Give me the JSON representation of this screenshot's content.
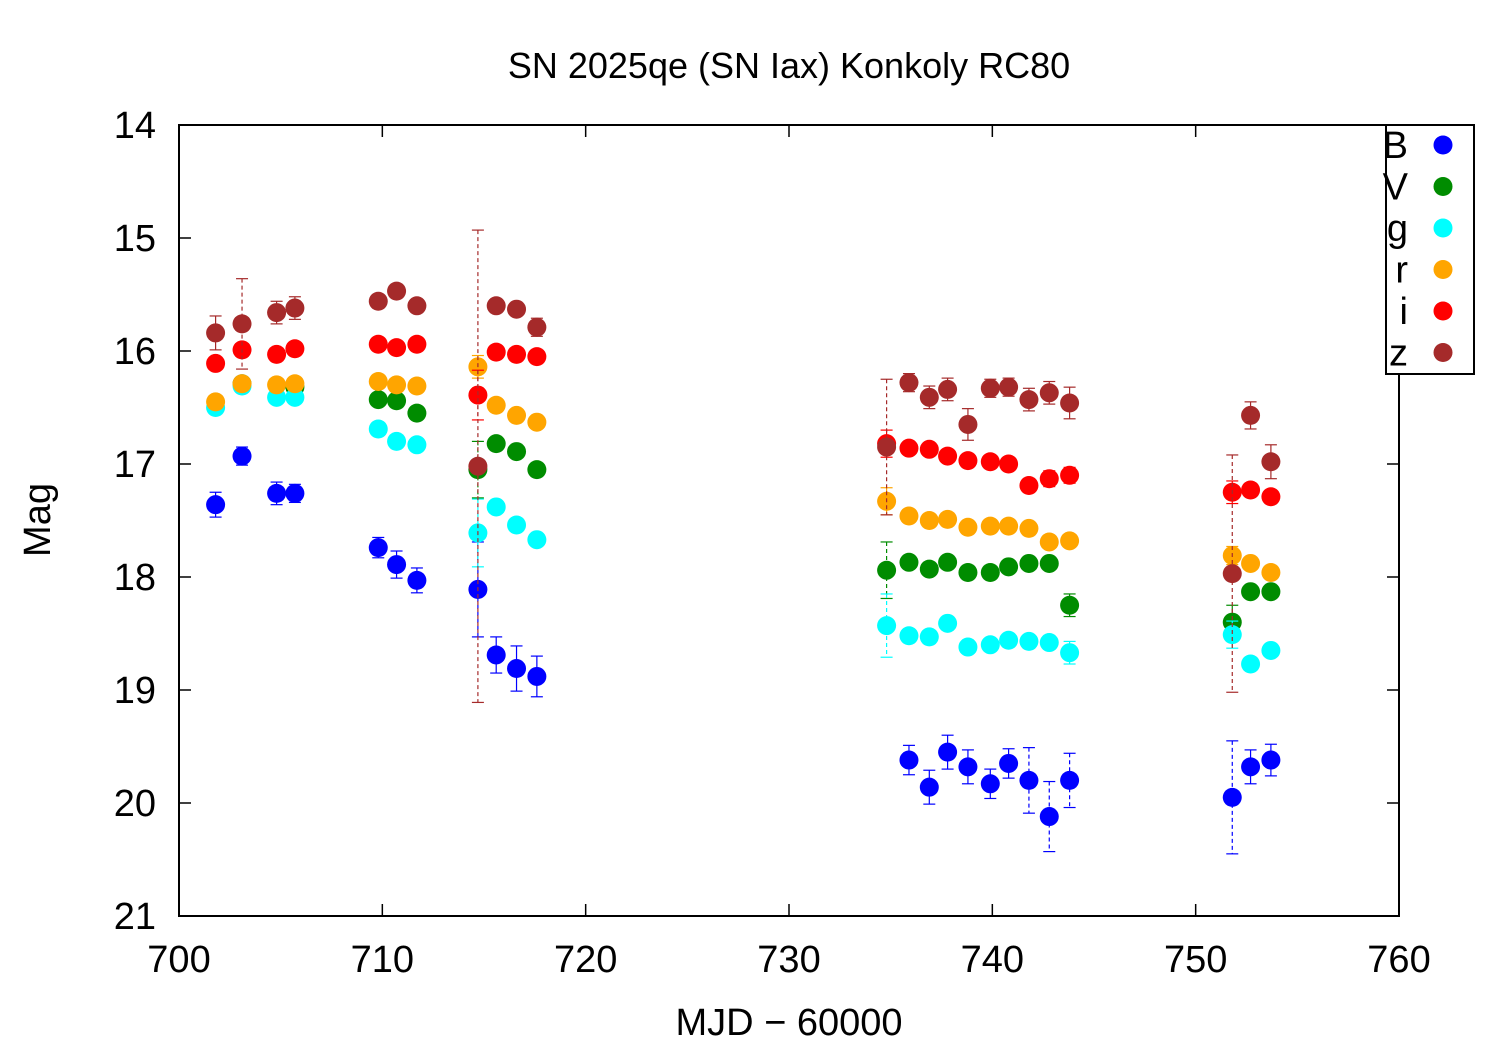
{
  "chart_data": {
    "type": "scatter",
    "title": "SN 2025qe (SN Iax) Konkoly RC80",
    "xlabel": "MJD − 60000",
    "ylabel": "Mag",
    "xlim": [
      700,
      760
    ],
    "ylim": [
      14,
      21
    ],
    "y_inverted": true,
    "x_ticks": [
      "700",
      "710",
      "720",
      "730",
      "740",
      "750",
      "760"
    ],
    "y_ticks": [
      "14",
      "15",
      "16",
      "17",
      "18",
      "19",
      "20",
      "21"
    ],
    "grid": false,
    "legend_position": "top-right",
    "marker": "filled-circle",
    "error_bars": true,
    "series": [
      {
        "name": "B",
        "color": "#0000ff",
        "points": [
          {
            "x": 701.8,
            "y": 17.36,
            "err": 0.11
          },
          {
            "x": 703.1,
            "y": 16.93,
            "err": 0.08
          },
          {
            "x": 704.8,
            "y": 17.26,
            "err": 0.1
          },
          {
            "x": 705.7,
            "y": 17.26,
            "err": 0.08
          },
          {
            "x": 709.8,
            "y": 17.74,
            "err": 0.09
          },
          {
            "x": 710.7,
            "y": 17.89,
            "err": 0.12
          },
          {
            "x": 711.7,
            "y": 18.03,
            "err": 0.11
          },
          {
            "x": 714.7,
            "y": 18.11,
            "err": 0.42
          },
          {
            "x": 715.6,
            "y": 18.69,
            "err": 0.16
          },
          {
            "x": 716.6,
            "y": 18.81,
            "err": 0.2
          },
          {
            "x": 717.6,
            "y": 18.88,
            "err": 0.18
          },
          {
            "x": 735.9,
            "y": 19.62,
            "err": 0.13
          },
          {
            "x": 736.9,
            "y": 19.86,
            "err": 0.15
          },
          {
            "x": 737.8,
            "y": 19.55,
            "err": 0.15
          },
          {
            "x": 738.8,
            "y": 19.68,
            "err": 0.15
          },
          {
            "x": 739.9,
            "y": 19.83,
            "err": 0.13
          },
          {
            "x": 740.8,
            "y": 19.65,
            "err": 0.13
          },
          {
            "x": 741.8,
            "y": 19.8,
            "err": 0.29
          },
          {
            "x": 742.8,
            "y": 20.12,
            "err": 0.31
          },
          {
            "x": 743.8,
            "y": 19.8,
            "err": 0.24
          },
          {
            "x": 751.8,
            "y": 19.95,
            "err": 0.5
          },
          {
            "x": 752.7,
            "y": 19.68,
            "err": 0.15
          },
          {
            "x": 753.7,
            "y": 19.62,
            "err": 0.14
          }
        ]
      },
      {
        "name": "V",
        "color": "#008c00",
        "points": [
          {
            "x": 703.1,
            "y": 16.29,
            "err": 0.04
          },
          {
            "x": 705.7,
            "y": 16.32,
            "err": 0.04
          },
          {
            "x": 709.8,
            "y": 16.43,
            "err": 0.04
          },
          {
            "x": 710.7,
            "y": 16.44,
            "err": 0.05
          },
          {
            "x": 711.7,
            "y": 16.55,
            "err": 0.04
          },
          {
            "x": 714.7,
            "y": 17.05,
            "err": 0.25
          },
          {
            "x": 715.6,
            "y": 16.82,
            "err": 0.05
          },
          {
            "x": 716.6,
            "y": 16.89,
            "err": 0.05
          },
          {
            "x": 717.6,
            "y": 17.05,
            "err": 0.05
          },
          {
            "x": 734.8,
            "y": 17.94,
            "err": 0.25
          },
          {
            "x": 735.9,
            "y": 17.87,
            "err": 0.05
          },
          {
            "x": 736.9,
            "y": 17.93,
            "err": 0.06
          },
          {
            "x": 737.8,
            "y": 17.87,
            "err": 0.05
          },
          {
            "x": 738.8,
            "y": 17.96,
            "err": 0.05
          },
          {
            "x": 739.9,
            "y": 17.96,
            "err": 0.05
          },
          {
            "x": 740.8,
            "y": 17.91,
            "err": 0.05
          },
          {
            "x": 741.8,
            "y": 17.88,
            "err": 0.05
          },
          {
            "x": 742.8,
            "y": 17.88,
            "err": 0.05
          },
          {
            "x": 743.8,
            "y": 18.25,
            "err": 0.1
          },
          {
            "x": 751.8,
            "y": 18.4,
            "err": 0.15
          },
          {
            "x": 752.7,
            "y": 18.13,
            "err": 0.05
          },
          {
            "x": 753.7,
            "y": 18.13,
            "err": 0.05
          }
        ]
      },
      {
        "name": "g",
        "color": "#00ffff",
        "points": [
          {
            "x": 701.8,
            "y": 16.5,
            "err": 0.04
          },
          {
            "x": 703.1,
            "y": 16.31,
            "err": 0.04
          },
          {
            "x": 704.8,
            "y": 16.41,
            "err": 0.04
          },
          {
            "x": 705.7,
            "y": 16.41,
            "err": 0.04
          },
          {
            "x": 709.8,
            "y": 16.69,
            "err": 0.04
          },
          {
            "x": 710.7,
            "y": 16.8,
            "err": 0.04
          },
          {
            "x": 711.7,
            "y": 16.83,
            "err": 0.04
          },
          {
            "x": 714.7,
            "y": 17.61,
            "err": 0.3
          },
          {
            "x": 715.6,
            "y": 17.38,
            "err": 0.05
          },
          {
            "x": 716.6,
            "y": 17.54,
            "err": 0.05
          },
          {
            "x": 717.6,
            "y": 17.67,
            "err": 0.05
          },
          {
            "x": 734.8,
            "y": 18.43,
            "err": 0.28
          },
          {
            "x": 735.9,
            "y": 18.52,
            "err": 0.06
          },
          {
            "x": 736.9,
            "y": 18.53,
            "err": 0.06
          },
          {
            "x": 737.8,
            "y": 18.41,
            "err": 0.06
          },
          {
            "x": 738.8,
            "y": 18.62,
            "err": 0.06
          },
          {
            "x": 739.9,
            "y": 18.6,
            "err": 0.05
          },
          {
            "x": 740.8,
            "y": 18.56,
            "err": 0.06
          },
          {
            "x": 741.8,
            "y": 18.57,
            "err": 0.06
          },
          {
            "x": 742.8,
            "y": 18.58,
            "err": 0.06
          },
          {
            "x": 743.8,
            "y": 18.67,
            "err": 0.1
          },
          {
            "x": 751.8,
            "y": 18.51,
            "err": 0.12
          },
          {
            "x": 752.7,
            "y": 18.77,
            "err": 0.05
          },
          {
            "x": 753.7,
            "y": 18.65,
            "err": 0.05
          }
        ]
      },
      {
        "name": "r",
        "color": "#ffa500",
        "points": [
          {
            "x": 701.8,
            "y": 16.45,
            "err": 0.04
          },
          {
            "x": 703.1,
            "y": 16.29,
            "err": 0.04
          },
          {
            "x": 704.8,
            "y": 16.3,
            "err": 0.04
          },
          {
            "x": 705.7,
            "y": 16.29,
            "err": 0.04
          },
          {
            "x": 709.8,
            "y": 16.27,
            "err": 0.04
          },
          {
            "x": 710.7,
            "y": 16.3,
            "err": 0.04
          },
          {
            "x": 711.7,
            "y": 16.31,
            "err": 0.04
          },
          {
            "x": 714.7,
            "y": 16.14,
            "err": 0.1
          },
          {
            "x": 715.6,
            "y": 16.48,
            "err": 0.04
          },
          {
            "x": 716.6,
            "y": 16.57,
            "err": 0.04
          },
          {
            "x": 717.6,
            "y": 16.63,
            "err": 0.04
          },
          {
            "x": 734.8,
            "y": 17.33,
            "err": 0.12
          },
          {
            "x": 735.9,
            "y": 17.46,
            "err": 0.04
          },
          {
            "x": 736.9,
            "y": 17.5,
            "err": 0.04
          },
          {
            "x": 737.8,
            "y": 17.49,
            "err": 0.04
          },
          {
            "x": 738.8,
            "y": 17.56,
            "err": 0.04
          },
          {
            "x": 739.9,
            "y": 17.55,
            "err": 0.04
          },
          {
            "x": 740.8,
            "y": 17.55,
            "err": 0.04
          },
          {
            "x": 741.8,
            "y": 17.57,
            "err": 0.04
          },
          {
            "x": 742.8,
            "y": 17.69,
            "err": 0.04
          },
          {
            "x": 743.8,
            "y": 17.68,
            "err": 0.05
          },
          {
            "x": 751.8,
            "y": 17.81,
            "err": 0.08
          },
          {
            "x": 752.7,
            "y": 17.88,
            "err": 0.04
          },
          {
            "x": 753.7,
            "y": 17.96,
            "err": 0.04
          }
        ]
      },
      {
        "name": "i",
        "color": "#ff0000",
        "points": [
          {
            "x": 701.8,
            "y": 16.11,
            "err": 0.04
          },
          {
            "x": 703.1,
            "y": 15.99,
            "err": 0.04
          },
          {
            "x": 704.8,
            "y": 16.03,
            "err": 0.04
          },
          {
            "x": 705.7,
            "y": 15.98,
            "err": 0.04
          },
          {
            "x": 709.8,
            "y": 15.94,
            "err": 0.04
          },
          {
            "x": 710.7,
            "y": 15.97,
            "err": 0.04
          },
          {
            "x": 711.7,
            "y": 15.94,
            "err": 0.04
          },
          {
            "x": 714.7,
            "y": 16.39,
            "err": 0.22
          },
          {
            "x": 715.6,
            "y": 16.01,
            "err": 0.04
          },
          {
            "x": 716.6,
            "y": 16.03,
            "err": 0.04
          },
          {
            "x": 717.6,
            "y": 16.05,
            "err": 0.04
          },
          {
            "x": 734.8,
            "y": 16.82,
            "err": 0.12
          },
          {
            "x": 735.9,
            "y": 16.86,
            "err": 0.04
          },
          {
            "x": 736.9,
            "y": 16.87,
            "err": 0.04
          },
          {
            "x": 737.8,
            "y": 16.93,
            "err": 0.04
          },
          {
            "x": 738.8,
            "y": 16.97,
            "err": 0.05
          },
          {
            "x": 739.9,
            "y": 16.98,
            "err": 0.05
          },
          {
            "x": 740.8,
            "y": 17.0,
            "err": 0.05
          },
          {
            "x": 741.8,
            "y": 17.19,
            "err": 0.06
          },
          {
            "x": 742.8,
            "y": 17.13,
            "err": 0.07
          },
          {
            "x": 743.8,
            "y": 17.1,
            "err": 0.07
          },
          {
            "x": 751.8,
            "y": 17.25,
            "err": 0.1
          },
          {
            "x": 752.7,
            "y": 17.23,
            "err": 0.06
          },
          {
            "x": 753.7,
            "y": 17.29,
            "err": 0.06
          }
        ]
      },
      {
        "name": "z",
        "color": "#a52a2a",
        "points": [
          {
            "x": 701.8,
            "y": 15.84,
            "err": 0.15
          },
          {
            "x": 703.1,
            "y": 15.76,
            "err": 0.4
          },
          {
            "x": 704.8,
            "y": 15.66,
            "err": 0.1
          },
          {
            "x": 705.7,
            "y": 15.62,
            "err": 0.1
          },
          {
            "x": 709.8,
            "y": 15.56,
            "err": 0.06
          },
          {
            "x": 710.7,
            "y": 15.47,
            "err": 0.06
          },
          {
            "x": 711.7,
            "y": 15.6,
            "err": 0.06
          },
          {
            "x": 714.7,
            "y": 17.02,
            "err": 2.09
          },
          {
            "x": 715.6,
            "y": 15.6,
            "err": 0.06
          },
          {
            "x": 716.6,
            "y": 15.63,
            "err": 0.06
          },
          {
            "x": 717.6,
            "y": 15.79,
            "err": 0.08
          },
          {
            "x": 734.8,
            "y": 16.85,
            "err": 0.6
          },
          {
            "x": 735.9,
            "y": 16.28,
            "err": 0.08
          },
          {
            "x": 736.9,
            "y": 16.41,
            "err": 0.1
          },
          {
            "x": 737.8,
            "y": 16.34,
            "err": 0.1
          },
          {
            "x": 738.8,
            "y": 16.65,
            "err": 0.14
          },
          {
            "x": 739.9,
            "y": 16.33,
            "err": 0.08
          },
          {
            "x": 740.8,
            "y": 16.32,
            "err": 0.08
          },
          {
            "x": 741.8,
            "y": 16.43,
            "err": 0.1
          },
          {
            "x": 742.8,
            "y": 16.37,
            "err": 0.1
          },
          {
            "x": 743.8,
            "y": 16.46,
            "err": 0.14
          },
          {
            "x": 751.8,
            "y": 17.97,
            "err": 1.05
          },
          {
            "x": 752.7,
            "y": 16.57,
            "err": 0.12
          },
          {
            "x": 753.7,
            "y": 16.98,
            "err": 0.15
          }
        ]
      }
    ]
  }
}
